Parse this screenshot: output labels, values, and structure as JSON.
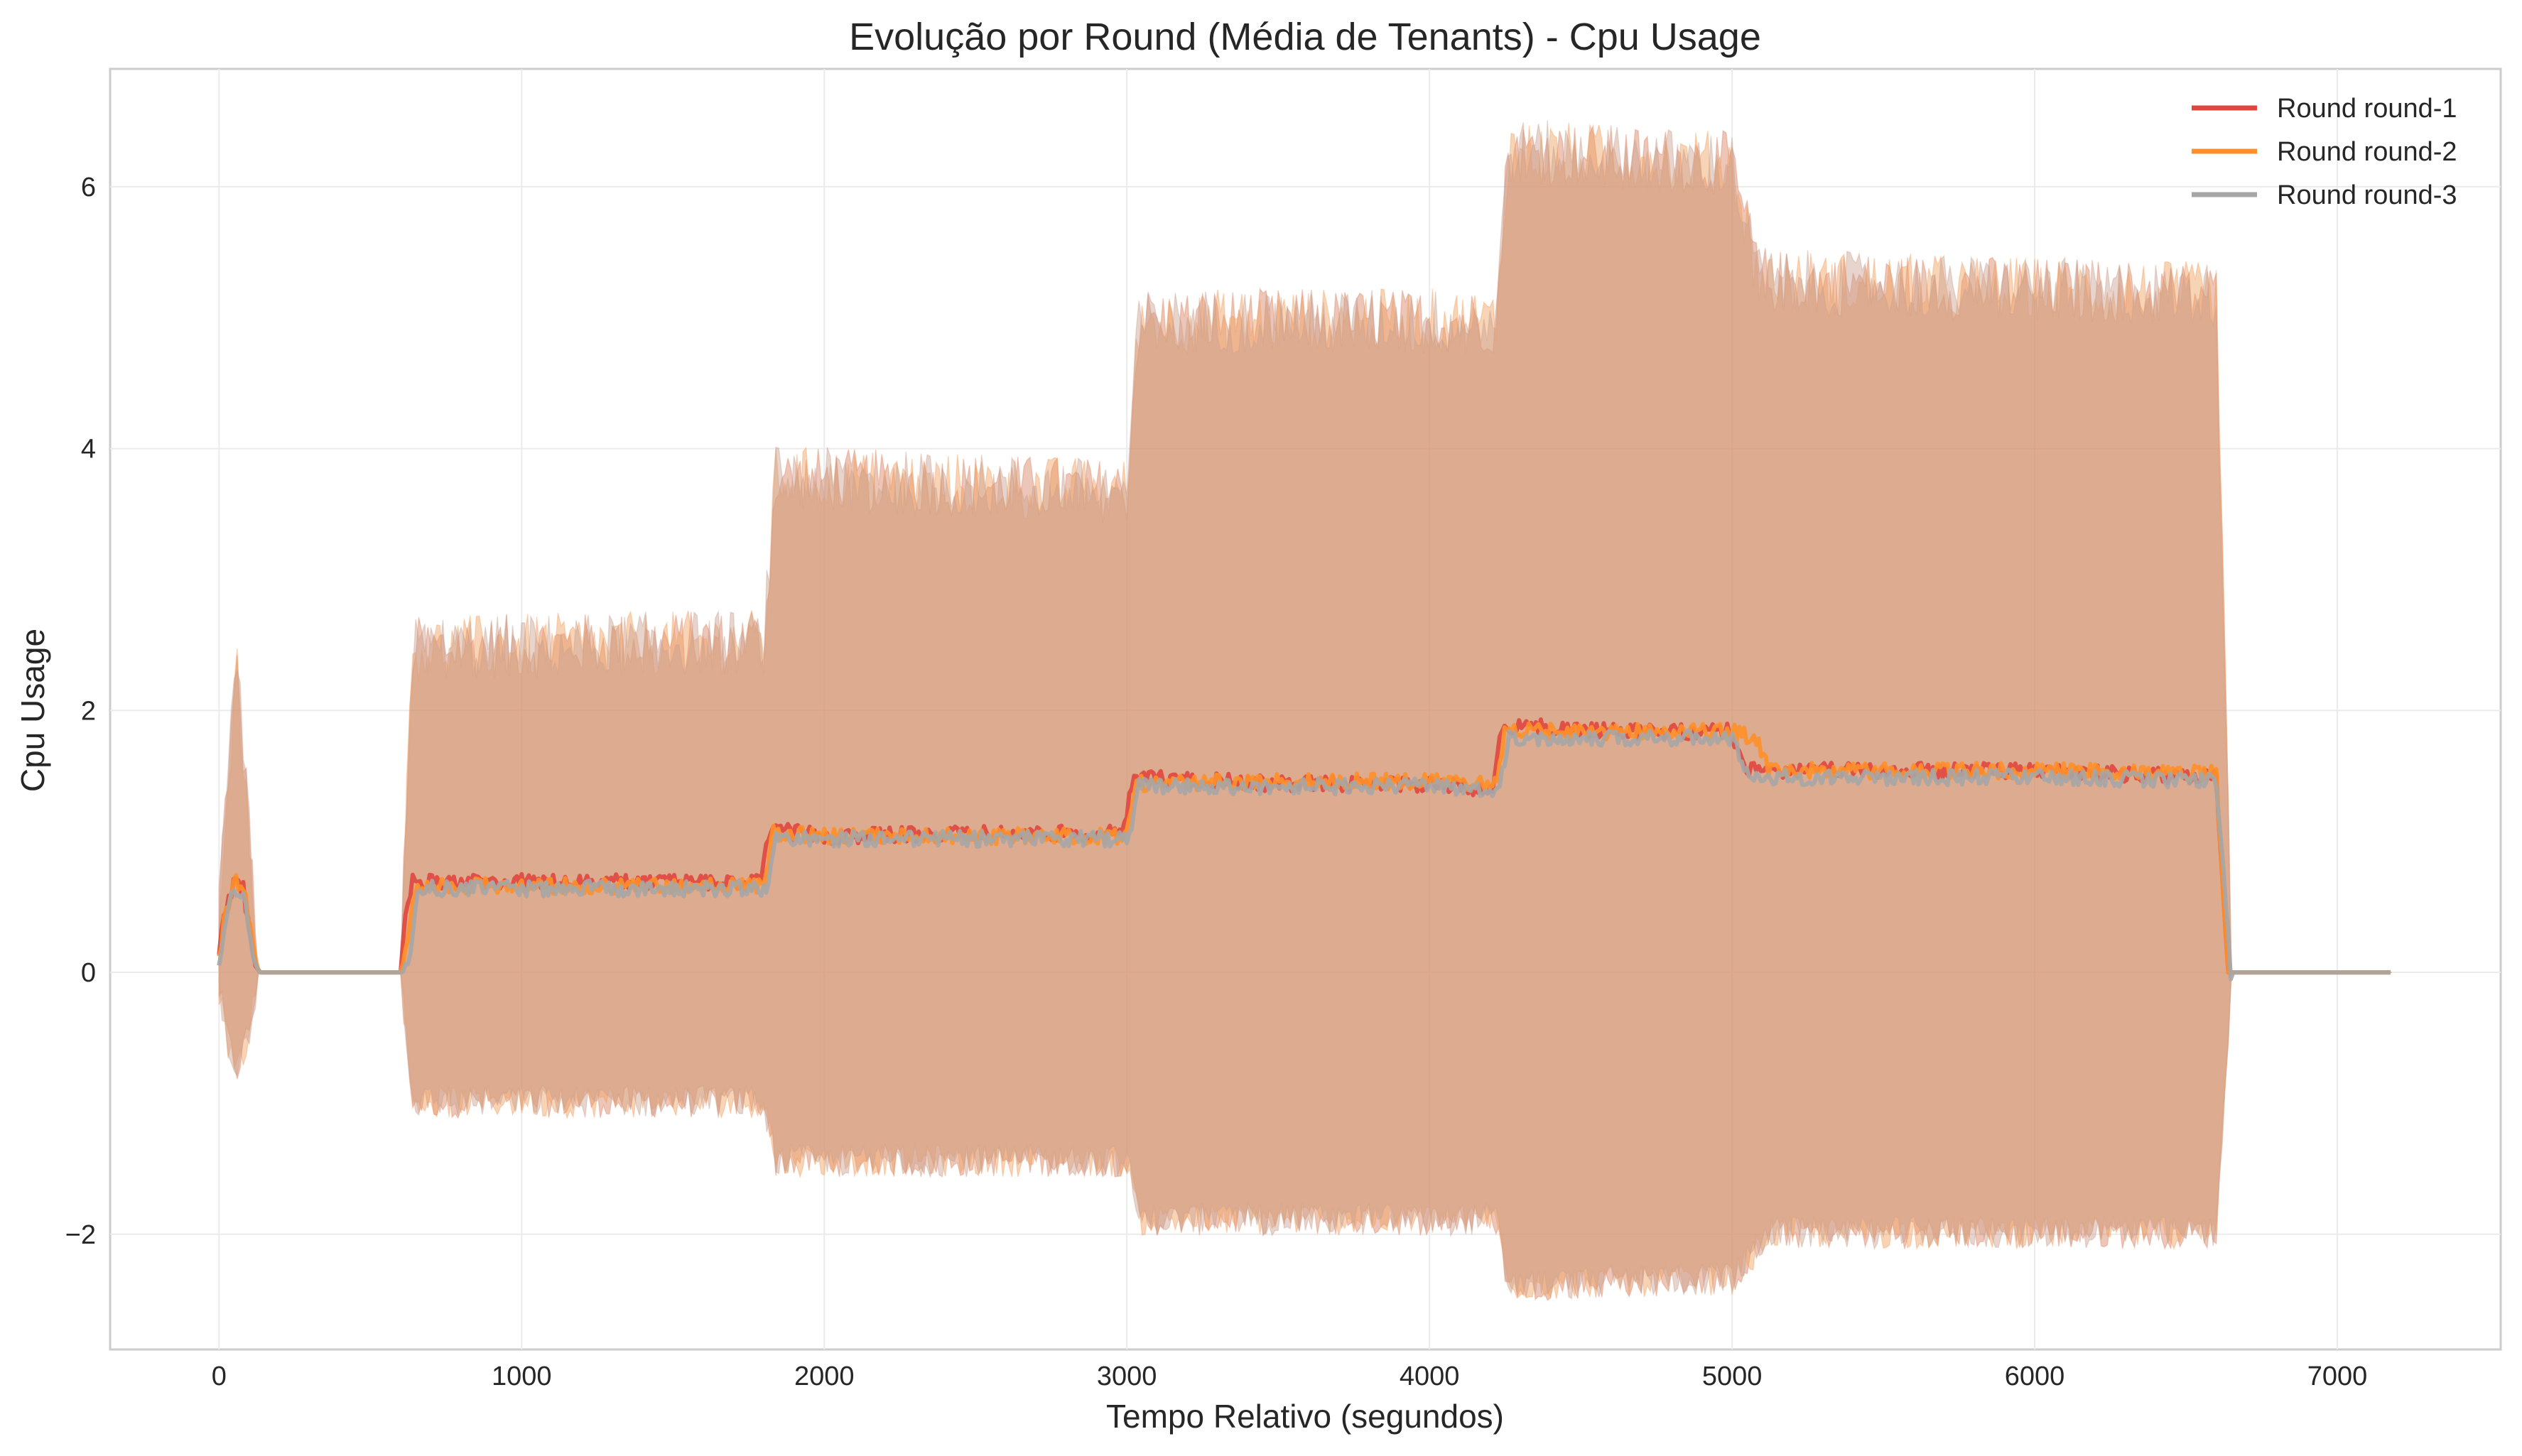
{
  "chart_data": {
    "type": "line",
    "title": "Evolução por Round (Média de Tenants) - Cpu Usage",
    "xlabel": "Tempo Relativo (segundos)",
    "ylabel": "Cpu Usage",
    "xlim": [
      -360,
      7540
    ],
    "ylim": [
      -2.88,
      6.9
    ],
    "x_ticks": [
      0,
      1000,
      2000,
      3000,
      4000,
      5000,
      6000,
      7000
    ],
    "x_tick_labels": [
      "0",
      "1000",
      "2000",
      "3000",
      "4000",
      "5000",
      "6000",
      "7000"
    ],
    "y_ticks": [
      -2,
      0,
      2,
      4,
      6
    ],
    "y_tick_labels": [
      "−2",
      "0",
      "2",
      "4",
      "6"
    ],
    "grid": true,
    "legend_position": "top-right",
    "band": {
      "description_kind": "mean ± std shaded band per series",
      "upper": {
        "x": [
          0,
          30,
          60,
          100,
          130,
          600,
          640,
          1800,
          1840,
          3000,
          3040,
          4220,
          4260,
          5000,
          5080,
          5120,
          6600,
          6650,
          7180
        ],
        "y": [
          0.5,
          1.5,
          2.2,
          1.0,
          0,
          0,
          2.4,
          2.45,
          3.7,
          3.6,
          4.9,
          4.9,
          6.2,
          6.1,
          5.3,
          5.2,
          5.1,
          0,
          0
        ]
      },
      "lower": {
        "x": [
          0,
          30,
          60,
          100,
          130,
          600,
          640,
          1800,
          1840,
          3000,
          3040,
          4220,
          4260,
          5000,
          5080,
          5120,
          6600,
          6650,
          7180
        ],
        "y": [
          -0.1,
          -0.5,
          -0.7,
          -0.4,
          0,
          0,
          -0.95,
          -0.95,
          -1.4,
          -1.4,
          -1.85,
          -1.85,
          -2.35,
          -2.3,
          -2.1,
          -1.95,
          -1.95,
          0,
          0
        ]
      }
    },
    "series": [
      {
        "name": "Round round-1",
        "color": "#e0463e",
        "x": [
          0,
          20,
          50,
          80,
          110,
          130,
          600,
          610,
          640,
          1000,
          1500,
          1790,
          1820,
          2000,
          2500,
          2990,
          3020,
          3500,
          4000,
          4210,
          4240,
          4600,
          5000,
          5040,
          5500,
          6000,
          6600,
          6640,
          7180
        ],
        "y": [
          0.2,
          0.55,
          0.75,
          0.7,
          0.25,
          0,
          0,
          0.4,
          0.75,
          0.75,
          0.75,
          0.75,
          1.15,
          1.1,
          1.12,
          1.12,
          1.55,
          1.5,
          1.5,
          1.45,
          1.95,
          1.9,
          1.9,
          1.6,
          1.6,
          1.6,
          1.55,
          0,
          0
        ]
      },
      {
        "name": "Round round-2",
        "color": "#ff9029",
        "x": [
          0,
          20,
          50,
          80,
          110,
          130,
          600,
          620,
          650,
          1000,
          1500,
          1800,
          1830,
          2000,
          2500,
          3000,
          3030,
          3500,
          4000,
          4220,
          4250,
          4600,
          5000,
          5080,
          5120,
          5500,
          6000,
          6600,
          6640,
          7180
        ],
        "y": [
          0.15,
          0.5,
          0.75,
          0.72,
          0.3,
          0,
          0,
          0.3,
          0.72,
          0.72,
          0.72,
          0.72,
          1.12,
          1.1,
          1.1,
          1.1,
          1.5,
          1.52,
          1.52,
          1.5,
          1.9,
          1.9,
          1.9,
          1.85,
          1.6,
          1.6,
          1.6,
          1.58,
          0,
          0
        ]
      },
      {
        "name": "Round round-3",
        "color": "#a6a6a6",
        "x": [
          0,
          20,
          50,
          80,
          110,
          130,
          600,
          630,
          660,
          1000,
          1500,
          1810,
          1840,
          2000,
          2500,
          3010,
          3040,
          3500,
          4000,
          4230,
          4260,
          4600,
          5000,
          5060,
          5500,
          6000,
          6600,
          6650,
          7180
        ],
        "y": [
          0.1,
          0.45,
          0.7,
          0.68,
          0.25,
          0,
          0,
          0.2,
          0.7,
          0.7,
          0.7,
          0.7,
          1.08,
          1.08,
          1.08,
          1.08,
          1.48,
          1.48,
          1.48,
          1.45,
          1.85,
          1.85,
          1.85,
          1.55,
          1.55,
          1.55,
          1.52,
          0,
          0
        ]
      }
    ]
  }
}
